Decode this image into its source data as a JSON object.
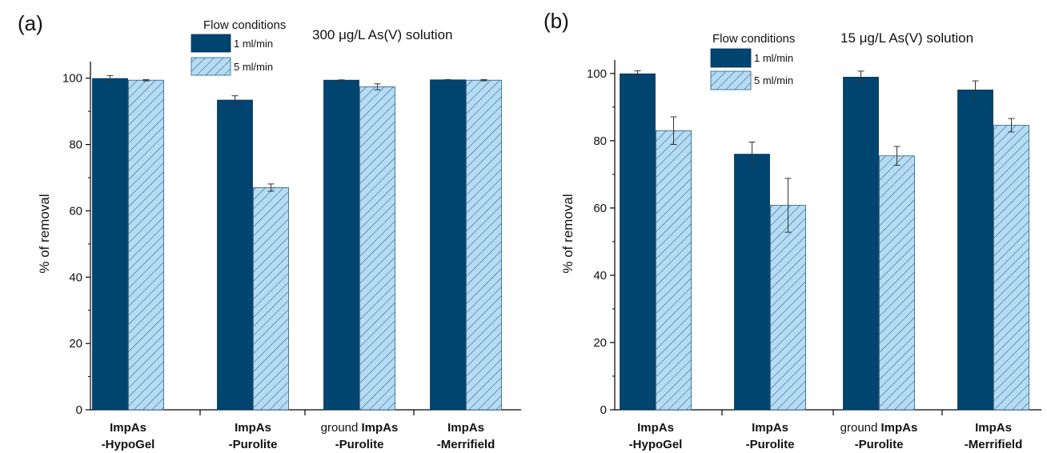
{
  "chart_data": [
    {
      "type": "bar",
      "panel_label": "(a)",
      "annotation": "300 μg/L As(V) solution",
      "ylabel": "% of removal",
      "xlabel": "",
      "ylim": [
        0,
        105
      ],
      "yticks": [
        0,
        20,
        40,
        60,
        80,
        100
      ],
      "legend_title": "Flow conditions",
      "legend_position": "top-center",
      "categories": [
        {
          "prefix": "",
          "line1": "ImpAs",
          "line2": "-HypoGel"
        },
        {
          "prefix": "",
          "line1": "ImpAs",
          "line2": "-Purolite"
        },
        {
          "prefix": "ground ",
          "line1": "ImpAs",
          "line2": "-Purolite"
        },
        {
          "prefix": "",
          "line1": "ImpAs",
          "line2": "-Merrifield"
        }
      ],
      "series": [
        {
          "name": "1 ml/min",
          "values": [
            99.9,
            93.4,
            99.4,
            99.5
          ],
          "errors": [
            0.9,
            1.3,
            0.1,
            0.1
          ],
          "color": "#004470",
          "pattern": "solid"
        },
        {
          "name": "5 ml/min",
          "values": [
            99.4,
            67.0,
            97.4,
            99.4
          ],
          "errors": [
            0.2,
            1.1,
            0.9,
            0.2
          ],
          "color": "#b5dcf4",
          "pattern": "hatch"
        }
      ]
    },
    {
      "type": "bar",
      "panel_label": "(b)",
      "annotation": "15 μg/L As(V) solution",
      "ylabel": "% of removal",
      "xlabel": "",
      "ylim": [
        0,
        104
      ],
      "yticks": [
        0,
        20,
        40,
        60,
        80,
        100
      ],
      "legend_title": "Flow conditions",
      "legend_position": "top-center",
      "categories": [
        {
          "prefix": "",
          "line1": "ImpAs",
          "line2": "-HypoGel"
        },
        {
          "prefix": "",
          "line1": "ImpAs",
          "line2": "-Purolite"
        },
        {
          "prefix": "ground ",
          "line1": "ImpAs",
          "line2": "-Purolite"
        },
        {
          "prefix": "",
          "line1": "ImpAs",
          "line2": "-Merrifield"
        }
      ],
      "series": [
        {
          "name": "1 ml/min",
          "values": [
            99.9,
            76.0,
            98.9,
            95.1
          ],
          "errors": [
            0.9,
            3.6,
            1.8,
            2.7
          ],
          "color": "#004470",
          "pattern": "solid"
        },
        {
          "name": "5 ml/min",
          "values": [
            83.0,
            60.8,
            75.5,
            84.6
          ],
          "errors": [
            4.1,
            8.0,
            2.8,
            2.0
          ],
          "color": "#b5dcf4",
          "pattern": "hatch"
        }
      ]
    }
  ]
}
